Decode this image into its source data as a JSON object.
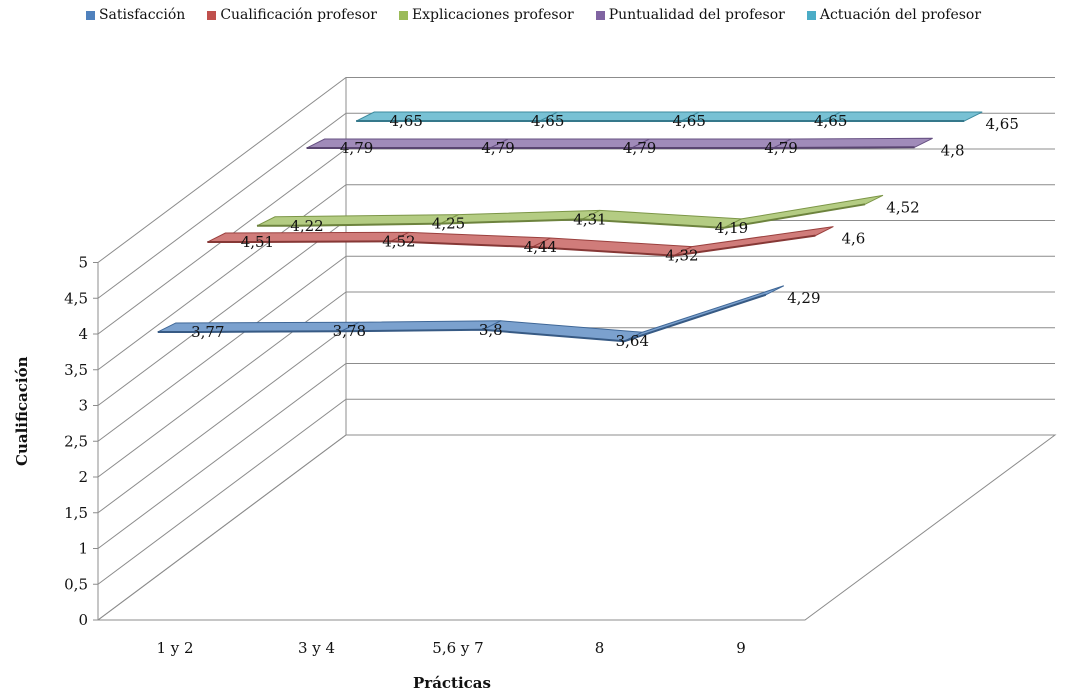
{
  "chart_data": {
    "type": "line",
    "variant": "3d",
    "categories": [
      "1 y 2",
      "3 y 4",
      "5,6 y 7",
      "8",
      "9"
    ],
    "series": [
      {
        "name": "Satisfacción",
        "values": [
          3.77,
          3.78,
          3.8,
          3.64,
          4.29
        ],
        "color": "#4f81bd"
      },
      {
        "name": "Cualificación profesor",
        "values": [
          4.51,
          4.52,
          4.44,
          4.32,
          4.6
        ],
        "color": "#c0504d"
      },
      {
        "name": "Explicaciones profesor",
        "values": [
          4.22,
          4.25,
          4.31,
          4.19,
          4.52
        ],
        "color": "#9bbb59"
      },
      {
        "name": "Puntualidad del profesor",
        "values": [
          4.79,
          4.79,
          4.79,
          4.79,
          4.8
        ],
        "color": "#8064a2"
      },
      {
        "name": "Actuación del profesor",
        "values": [
          4.65,
          4.65,
          4.65,
          4.65,
          4.65
        ],
        "color": "#4bacc6"
      }
    ],
    "data_labels": [
      [
        "3,77",
        "3,78",
        "3,8",
        "3,64",
        "4,29"
      ],
      [
        "4,51",
        "4,52",
        "4,44",
        "4,32",
        "4,6"
      ],
      [
        "4,22",
        "4,25",
        "4,31",
        "4,19",
        "4,52"
      ],
      [
        "4,79",
        "4,79",
        "4,79",
        "4,79",
        "4,8"
      ],
      [
        "4,65",
        "4,65",
        "4,65",
        "4,65",
        "4,65"
      ]
    ],
    "y_ticks": [
      "0",
      "0,5",
      "1",
      "1,5",
      "2",
      "2,5",
      "3",
      "3,5",
      "4",
      "4,5",
      "5"
    ],
    "ylim": [
      0,
      5
    ],
    "xlabel": "Prácticas",
    "ylabel": "Cualificación",
    "grid": true,
    "legend_position": "top"
  }
}
